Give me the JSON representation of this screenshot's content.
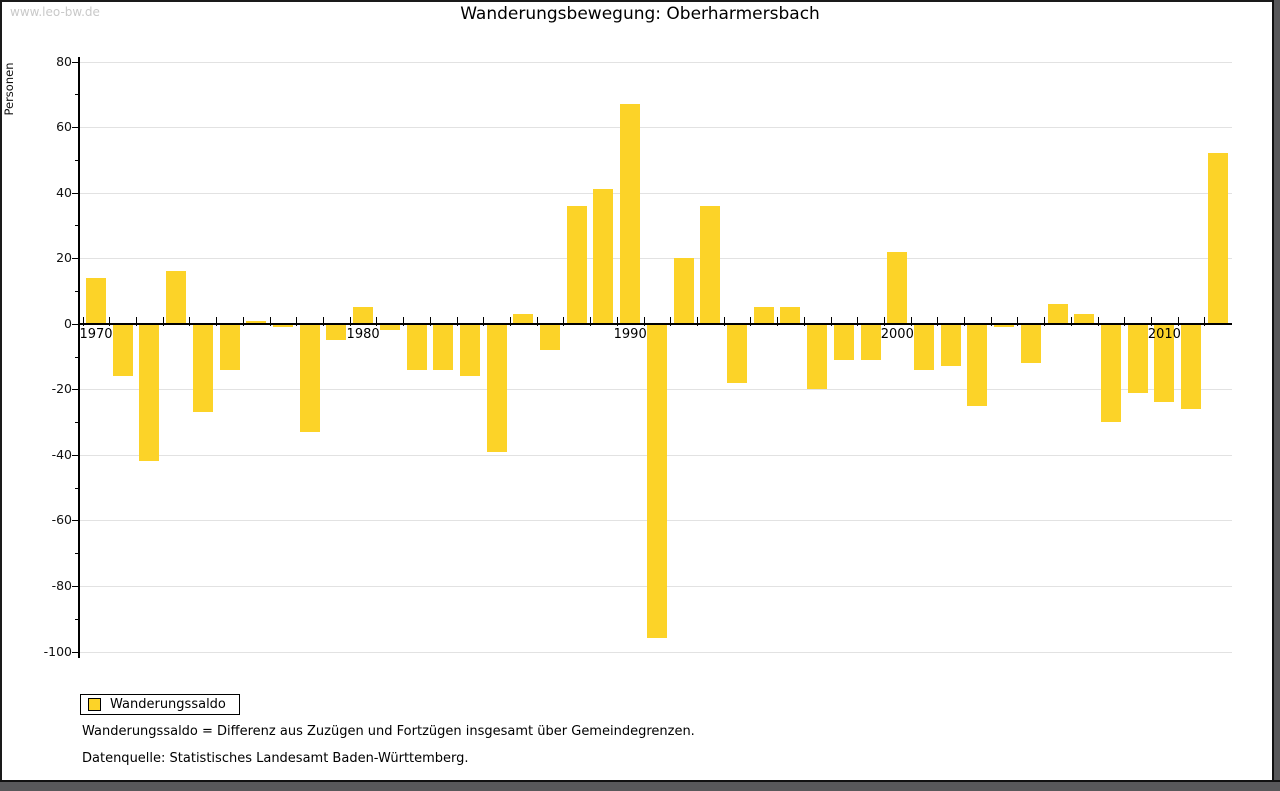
{
  "watermark": "www.leo-bw.de",
  "header": {
    "title": "Wanderungsbewegung: Oberharmersbach"
  },
  "legend": {
    "label": "Wanderungssaldo"
  },
  "footnotes": {
    "definition": "Wanderungssaldo = Differenz aus Zuzügen und Fortzügen insgesamt über Gemeindegrenzen.",
    "source": "Datenquelle: Statistisches Landesamt Baden-Württemberg."
  },
  "colors": {
    "bar": "#fcd328",
    "gridline": "#e2e2e2",
    "axis": "#000000",
    "watermark": "#c9c9c9",
    "frame_shadow": "#58585a"
  },
  "chart_data": {
    "type": "bar",
    "title": "Wanderungsbewegung: Oberharmersbach",
    "xlabel": "",
    "ylabel": "Personen",
    "ylim": [
      -100,
      80
    ],
    "ytick_major_step": 20,
    "ytick_minor_step": 10,
    "grid": true,
    "legend_position": "bottom-left",
    "series_name": "Wanderungssaldo",
    "x_labeled_ticks": [
      1970,
      1980,
      1990,
      2000,
      2010
    ],
    "x": [
      1970,
      1971,
      1972,
      1973,
      1974,
      1975,
      1976,
      1977,
      1978,
      1979,
      1980,
      1981,
      1982,
      1983,
      1984,
      1985,
      1986,
      1987,
      1988,
      1989,
      1990,
      1991,
      1992,
      1993,
      1994,
      1995,
      1996,
      1997,
      1998,
      1999,
      2000,
      2001,
      2002,
      2003,
      2004,
      2005,
      2006,
      2007,
      2008,
      2009,
      2010,
      2011,
      2012
    ],
    "values": [
      14,
      -16,
      -42,
      16,
      -27,
      -14,
      1,
      -1,
      -33,
      -5,
      5,
      -2,
      -14,
      -14,
      -16,
      -39,
      3,
      -8,
      36,
      41,
      67,
      -96,
      20,
      36,
      -18,
      5,
      5,
      -20,
      -11,
      -11,
      22,
      -14,
      -13,
      -25,
      -1,
      -12,
      6,
      3,
      -30,
      -21,
      -24,
      -26,
      52
    ]
  }
}
